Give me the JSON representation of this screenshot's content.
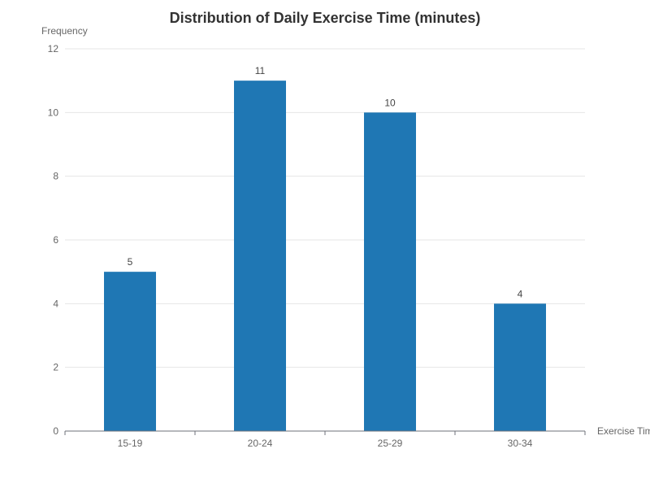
{
  "chart_data": {
    "type": "bar",
    "title": "Distribution of Daily Exercise Time (minutes)",
    "xlabel": "Exercise Time",
    "ylabel": "Frequency",
    "categories": [
      "15-19",
      "20-24",
      "25-29",
      "30-34"
    ],
    "values": [
      5,
      11,
      10,
      4
    ],
    "ylim": [
      0,
      12
    ],
    "yticks": [
      0,
      2,
      4,
      6,
      8,
      10,
      12
    ],
    "grid": true,
    "legend": "none",
    "bar_color": "#1f77b4"
  }
}
